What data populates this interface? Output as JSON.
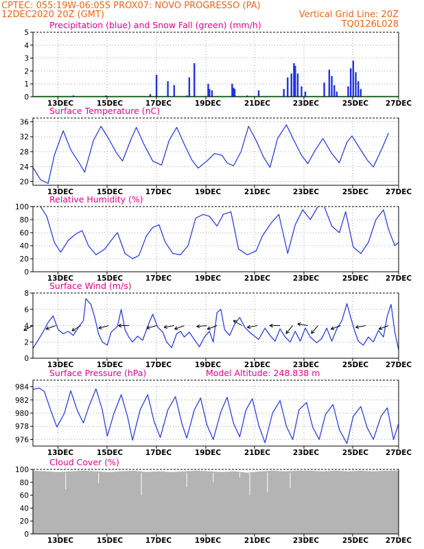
{
  "header": {
    "line1_left": "CPTEC:   055:19W-06:05S   PROX07: NOVO PROGRESSO (PA)",
    "line2_left": "12DEC2020 20Z (GMT)",
    "line2_right": "Vertical Grid Line: 20Z",
    "line3_right": "TQ0126L028"
  },
  "colors": {
    "precip": "#1f2fe6",
    "snow": "#11bb11",
    "line": "#2a3fe0",
    "cloud": "#b4b4b4",
    "title": "#e5008c",
    "header": "#e8651b"
  },
  "x_dates": [
    "13DEC",
    "15DEC",
    "17DEC",
    "19DEC",
    "21DEC",
    "23DEC",
    "25DEC",
    "27DEC"
  ],
  "chart_data": [
    {
      "id": "precip",
      "type": "bar",
      "title": "Precipitation (blue) and Snow Fall (green) (mm/h)",
      "ylim": [
        0,
        5
      ],
      "yticks": [
        0,
        1,
        2,
        3,
        4,
        5
      ],
      "x_unit": "days since 12DEC2020 20Z",
      "xlim": [
        0,
        14.5
      ],
      "grid": true,
      "series": [
        {
          "name": "Precipitation",
          "color": "#1f2fe6",
          "points": [
            [
              1.6,
              0.1
            ],
            [
              2.9,
              0.1
            ],
            [
              4.65,
              0.2
            ],
            [
              4.9,
              1.7
            ],
            [
              5.35,
              1.2
            ],
            [
              5.6,
              0.9
            ],
            [
              6.1,
              0.1
            ],
            [
              6.2,
              1.5
            ],
            [
              6.4,
              2.6
            ],
            [
              6.95,
              1.0
            ],
            [
              7.0,
              0.6
            ],
            [
              7.1,
              0.5
            ],
            [
              7.9,
              1.0
            ],
            [
              7.95,
              0.7
            ],
            [
              8.0,
              0.6
            ],
            [
              8.5,
              0.1
            ],
            [
              8.95,
              0.5
            ],
            [
              9.95,
              0.6
            ],
            [
              10.1,
              1.5
            ],
            [
              10.25,
              1.8
            ],
            [
              10.35,
              2.6
            ],
            [
              10.4,
              2.4
            ],
            [
              10.5,
              1.8
            ],
            [
              10.65,
              0.8
            ],
            [
              10.8,
              0.4
            ],
            [
              11.55,
              1.1
            ],
            [
              11.75,
              2.1
            ],
            [
              11.85,
              1.6
            ],
            [
              11.95,
              0.9
            ],
            [
              12.05,
              0.4
            ],
            [
              12.5,
              0.8
            ],
            [
              12.6,
              2.2
            ],
            [
              12.7,
              2.8
            ],
            [
              12.8,
              1.9
            ],
            [
              12.9,
              1.2
            ],
            [
              13.0,
              0.6
            ]
          ]
        },
        {
          "name": "Snow Fall",
          "color": "#11bb11",
          "points": []
        }
      ]
    },
    {
      "id": "temp",
      "type": "line",
      "title": "Surface Temperature (nC)",
      "ylim": [
        19,
        37
      ],
      "yticks": [
        20,
        24,
        28,
        32,
        36
      ],
      "xlim": [
        0,
        14.5
      ],
      "grid": true,
      "points": [
        [
          0,
          23.8
        ],
        [
          0.3,
          20.5
        ],
        [
          0.6,
          19.5
        ],
        [
          0.85,
          27
        ],
        [
          1.2,
          33.6
        ],
        [
          1.5,
          28.5
        ],
        [
          1.85,
          24.8
        ],
        [
          2.05,
          22.5
        ],
        [
          2.4,
          31
        ],
        [
          2.7,
          34.8
        ],
        [
          3.0,
          31.5
        ],
        [
          3.3,
          27.8
        ],
        [
          3.55,
          25.5
        ],
        [
          3.9,
          31.5
        ],
        [
          4.1,
          34.5
        ],
        [
          4.4,
          30
        ],
        [
          4.75,
          25.5
        ],
        [
          5.1,
          24.4
        ],
        [
          5.4,
          31
        ],
        [
          5.7,
          34.5
        ],
        [
          6.0,
          30
        ],
        [
          6.3,
          25.8
        ],
        [
          6.55,
          23.6
        ],
        [
          6.9,
          25.5
        ],
        [
          7.2,
          27.5
        ],
        [
          7.5,
          27
        ],
        [
          7.7,
          25
        ],
        [
          7.95,
          24.2
        ],
        [
          8.25,
          28
        ],
        [
          8.55,
          34.8
        ],
        [
          8.85,
          31
        ],
        [
          9.15,
          26.5
        ],
        [
          9.4,
          23.8
        ],
        [
          9.7,
          31.5
        ],
        [
          10.05,
          35.2
        ],
        [
          10.35,
          31
        ],
        [
          10.65,
          27
        ],
        [
          10.9,
          24.8
        ],
        [
          11.2,
          28.5
        ],
        [
          11.5,
          31.5
        ],
        [
          11.85,
          27.5
        ],
        [
          12.15,
          25
        ],
        [
          12.45,
          30.5
        ],
        [
          12.65,
          32.2
        ],
        [
          12.95,
          29
        ],
        [
          13.25,
          25.8
        ],
        [
          13.5,
          23.9
        ],
        [
          13.85,
          29
        ],
        [
          14.1,
          33
        ]
      ]
    },
    {
      "id": "rh",
      "type": "line",
      "title": "Relative Humidity (%)",
      "ylim": [
        0,
        100
      ],
      "yticks": [
        0,
        20,
        40,
        60,
        80,
        100
      ],
      "xlim": [
        0,
        14.5
      ],
      "grid": true,
      "points": [
        [
          0,
          100
        ],
        [
          0.3,
          100
        ],
        [
          0.55,
          85
        ],
        [
          0.85,
          45
        ],
        [
          1.1,
          30
        ],
        [
          1.4,
          48
        ],
        [
          1.7,
          58
        ],
        [
          1.95,
          63
        ],
        [
          2.2,
          40
        ],
        [
          2.5,
          26
        ],
        [
          2.85,
          35
        ],
        [
          3.1,
          48
        ],
        [
          3.35,
          60
        ],
        [
          3.65,
          28
        ],
        [
          3.95,
          20
        ],
        [
          4.2,
          25
        ],
        [
          4.5,
          55
        ],
        [
          4.75,
          68
        ],
        [
          5.0,
          72
        ],
        [
          5.25,
          45
        ],
        [
          5.55,
          28
        ],
        [
          5.85,
          26
        ],
        [
          6.15,
          40
        ],
        [
          6.45,
          82
        ],
        [
          6.75,
          88
        ],
        [
          7.0,
          85
        ],
        [
          7.3,
          70
        ],
        [
          7.55,
          88
        ],
        [
          7.85,
          92
        ],
        [
          8.15,
          35
        ],
        [
          8.5,
          26
        ],
        [
          8.85,
          32
        ],
        [
          9.1,
          55
        ],
        [
          9.45,
          75
        ],
        [
          9.75,
          88
        ],
        [
          10.1,
          28
        ],
        [
          10.4,
          72
        ],
        [
          10.7,
          95
        ],
        [
          11.0,
          80
        ],
        [
          11.3,
          100
        ],
        [
          11.55,
          100
        ],
        [
          11.85,
          70
        ],
        [
          12.15,
          60
        ],
        [
          12.4,
          92
        ],
        [
          12.7,
          38
        ],
        [
          13.0,
          28
        ],
        [
          13.3,
          45
        ],
        [
          13.6,
          80
        ],
        [
          13.9,
          95
        ],
        [
          14.1,
          65
        ],
        [
          14.35,
          40
        ],
        [
          14.5,
          45
        ]
      ]
    },
    {
      "id": "wind",
      "type": "line",
      "title": "Surface Wind (m/s)",
      "ylim": [
        0,
        8
      ],
      "yticks": [
        0,
        2,
        4,
        6,
        8
      ],
      "xlim": [
        0,
        14.5
      ],
      "grid": true,
      "points": [
        [
          0,
          1.2
        ],
        [
          0.2,
          2.2
        ],
        [
          0.4,
          3.2
        ],
        [
          0.6,
          4.4
        ],
        [
          0.8,
          5.2
        ],
        [
          1.0,
          3.5
        ],
        [
          1.2,
          3.0
        ],
        [
          1.4,
          3.3
        ],
        [
          1.6,
          2.8
        ],
        [
          1.8,
          3.8
        ],
        [
          2.0,
          4.6
        ],
        [
          2.1,
          7.3
        ],
        [
          2.3,
          6.6
        ],
        [
          2.45,
          5.0
        ],
        [
          2.6,
          3.0
        ],
        [
          2.75,
          2.0
        ],
        [
          2.95,
          1.6
        ],
        [
          3.1,
          3.2
        ],
        [
          3.35,
          3.9
        ],
        [
          3.5,
          6.0
        ],
        [
          3.65,
          3.5
        ],
        [
          3.8,
          2.6
        ],
        [
          3.95,
          2.0
        ],
        [
          4.15,
          2.7
        ],
        [
          4.35,
          2.2
        ],
        [
          4.6,
          4.3
        ],
        [
          4.75,
          5.4
        ],
        [
          4.95,
          3.8
        ],
        [
          5.15,
          3.2
        ],
        [
          5.3,
          2.0
        ],
        [
          5.5,
          1.3
        ],
        [
          5.7,
          3.0
        ],
        [
          5.85,
          3.3
        ],
        [
          6.0,
          2.6
        ],
        [
          6.2,
          3.2
        ],
        [
          6.4,
          2.3
        ],
        [
          6.6,
          1.4
        ],
        [
          6.8,
          2.6
        ],
        [
          7.0,
          3.3
        ],
        [
          7.15,
          2.0
        ],
        [
          7.3,
          5.6
        ],
        [
          7.45,
          6.0
        ],
        [
          7.6,
          3.5
        ],
        [
          7.8,
          2.8
        ],
        [
          8.0,
          4.2
        ],
        [
          8.2,
          5.0
        ],
        [
          8.4,
          3.8
        ],
        [
          8.55,
          3.3
        ],
        [
          8.75,
          2.8
        ],
        [
          8.95,
          2.3
        ],
        [
          9.2,
          3.7
        ],
        [
          9.4,
          2.8
        ],
        [
          9.6,
          2.1
        ],
        [
          9.8,
          3.6
        ],
        [
          10.0,
          2.6
        ],
        [
          10.2,
          2.0
        ],
        [
          10.4,
          3.3
        ],
        [
          10.6,
          2.1
        ],
        [
          10.8,
          3.7
        ],
        [
          11.0,
          2.6
        ],
        [
          11.25,
          1.9
        ],
        [
          11.45,
          2.4
        ],
        [
          11.65,
          3.7
        ],
        [
          11.85,
          2.1
        ],
        [
          12.05,
          3.6
        ],
        [
          12.25,
          4.6
        ],
        [
          12.45,
          6.7
        ],
        [
          12.6,
          5.0
        ],
        [
          12.75,
          3.4
        ],
        [
          12.9,
          2.1
        ],
        [
          13.1,
          1.6
        ],
        [
          13.3,
          2.6
        ],
        [
          13.5,
          2.0
        ],
        [
          13.7,
          3.4
        ],
        [
          13.9,
          2.6
        ],
        [
          14.05,
          5.2
        ],
        [
          14.2,
          6.6
        ],
        [
          14.35,
          3.2
        ],
        [
          14.5,
          1.0
        ]
      ],
      "arrows": [
        [
          0.0,
          208
        ],
        [
          0.9,
          200
        ],
        [
          1.9,
          210
        ],
        [
          3.0,
          195
        ],
        [
          3.8,
          180
        ],
        [
          4.9,
          195
        ],
        [
          5.6,
          190
        ],
        [
          6.0,
          200
        ],
        [
          6.9,
          185
        ],
        [
          7.3,
          200
        ],
        [
          8.3,
          150
        ],
        [
          8.9,
          190
        ],
        [
          9.8,
          180
        ],
        [
          10.3,
          230
        ],
        [
          10.9,
          170
        ],
        [
          11.3,
          230
        ],
        [
          12.2,
          200
        ],
        [
          13.2,
          190
        ],
        [
          14.1,
          200
        ]
      ]
    },
    {
      "id": "pressure",
      "type": "line",
      "title": "Surface Pressure (hPa)",
      "annotation": "Model Altitude: 248.838 m",
      "ylim": [
        975,
        985
      ],
      "yticks": [
        976,
        978,
        980,
        982,
        984
      ],
      "xlim": [
        0,
        14.5
      ],
      "grid": true,
      "points": [
        [
          0,
          983.6
        ],
        [
          0.25,
          983.8
        ],
        [
          0.45,
          983.3
        ],
        [
          0.7,
          980.5
        ],
        [
          0.95,
          977.9
        ],
        [
          1.25,
          980
        ],
        [
          1.5,
          983.4
        ],
        [
          1.75,
          980.5
        ],
        [
          2.0,
          978.5
        ],
        [
          2.2,
          980.8
        ],
        [
          2.5,
          983.7
        ],
        [
          2.75,
          980.5
        ],
        [
          2.95,
          976.5
        ],
        [
          3.2,
          979.8
        ],
        [
          3.5,
          982.8
        ],
        [
          3.75,
          979.5
        ],
        [
          3.95,
          975.9
        ],
        [
          4.25,
          980.5
        ],
        [
          4.55,
          982.8
        ],
        [
          4.8,
          978.8
        ],
        [
          5.05,
          976.3
        ],
        [
          5.35,
          980.5
        ],
        [
          5.65,
          982.5
        ],
        [
          5.9,
          978.5
        ],
        [
          6.1,
          976.2
        ],
        [
          6.4,
          980.5
        ],
        [
          6.65,
          982.3
        ],
        [
          6.9,
          978.2
        ],
        [
          7.15,
          976.0
        ],
        [
          7.45,
          980.2
        ],
        [
          7.7,
          982.4
        ],
        [
          7.95,
          978.5
        ],
        [
          8.2,
          976.4
        ],
        [
          8.45,
          980.5
        ],
        [
          8.7,
          982.2
        ],
        [
          8.95,
          978.2
        ],
        [
          9.2,
          975.5
        ],
        [
          9.5,
          980.0
        ],
        [
          9.8,
          981.9
        ],
        [
          10.05,
          978.0
        ],
        [
          10.3,
          976.0
        ],
        [
          10.55,
          980.5
        ],
        [
          10.85,
          981.6
        ],
        [
          11.1,
          977.8
        ],
        [
          11.35,
          976.0
        ],
        [
          11.6,
          979.8
        ],
        [
          11.9,
          981.3
        ],
        [
          12.15,
          977.5
        ],
        [
          12.45,
          975.4
        ],
        [
          12.7,
          979.5
        ],
        [
          13.0,
          981.0
        ],
        [
          13.25,
          977.8
        ],
        [
          13.5,
          976.0
        ],
        [
          13.8,
          979.5
        ],
        [
          14.05,
          980.8
        ],
        [
          14.3,
          976.0
        ],
        [
          14.5,
          978.4
        ]
      ]
    },
    {
      "id": "cloud",
      "type": "area",
      "title": "Cloud Cover (%)",
      "ylim": [
        0,
        100
      ],
      "yticks": [
        0,
        20,
        40,
        60,
        80,
        100
      ],
      "xlim": [
        0,
        14.5
      ],
      "grid": true,
      "points": [
        [
          0,
          98
        ],
        [
          0.5,
          97
        ],
        [
          1.0,
          96
        ],
        [
          1.5,
          97
        ],
        [
          2.0,
          98
        ],
        [
          2.5,
          97
        ],
        [
          3.0,
          96
        ],
        [
          3.5,
          97
        ],
        [
          4.0,
          98
        ],
        [
          4.5,
          96
        ],
        [
          5.0,
          97
        ],
        [
          5.5,
          96
        ],
        [
          6.0,
          97
        ],
        [
          6.5,
          98
        ],
        [
          7.0,
          97
        ],
        [
          7.5,
          96
        ],
        [
          8.0,
          97
        ],
        [
          8.5,
          95
        ],
        [
          9.0,
          97
        ],
        [
          9.5,
          98
        ],
        [
          10.0,
          97
        ],
        [
          10.5,
          98
        ],
        [
          11.0,
          98
        ],
        [
          11.5,
          97
        ],
        [
          12.0,
          98
        ],
        [
          12.5,
          97
        ],
        [
          13.0,
          98
        ],
        [
          13.5,
          97
        ],
        [
          14.0,
          98
        ],
        [
          14.5,
          98
        ]
      ]
    }
  ]
}
